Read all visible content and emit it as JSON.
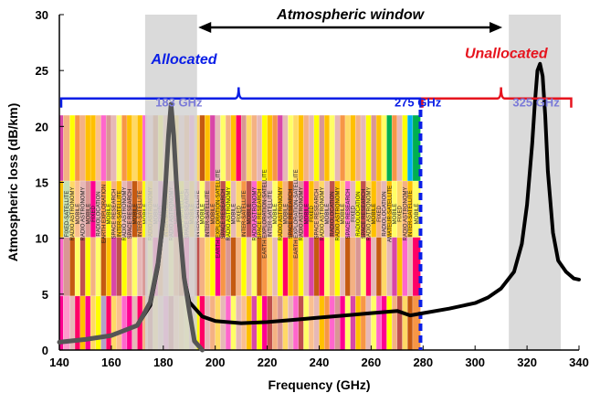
{
  "chart_data": {
    "type": "line",
    "xlabel": "Frequency (GHz)",
    "ylabel": "Atmospheric loss (dB/km)",
    "xlim": [
      140,
      340
    ],
    "ylim": [
      0,
      30
    ],
    "x_ticks": [
      "140",
      "160",
      "180",
      "200",
      "220",
      "240",
      "260",
      "280",
      "300",
      "320",
      "340"
    ],
    "y_ticks": [
      "0",
      "5",
      "10",
      "15",
      "20",
      "25",
      "30"
    ],
    "grid": false,
    "series": [
      {
        "color": "#000000",
        "x": [
          140,
          150,
          160,
          170,
          175,
          178,
          180,
          181,
          182,
          183,
          184,
          185,
          186,
          188,
          190,
          195,
          200,
          210,
          220,
          230,
          240,
          250,
          260,
          270,
          275,
          280,
          290,
          300,
          305,
          310,
          315,
          318,
          320,
          322,
          323,
          324,
          325,
          326,
          327,
          328,
          330,
          332,
          335,
          338,
          340
        ],
        "y": [
          0.7,
          0.95,
          1.3,
          2.2,
          4.0,
          7.5,
          11.5,
          15.0,
          19.0,
          22.0,
          19.0,
          15.0,
          11.5,
          6.5,
          4.3,
          3.0,
          2.6,
          2.4,
          2.5,
          2.7,
          2.9,
          3.1,
          3.3,
          3.5,
          3.1,
          3.3,
          3.7,
          4.2,
          4.7,
          5.5,
          7.0,
          9.5,
          13.0,
          18.5,
          22.0,
          25.0,
          25.6,
          24.5,
          21.0,
          16.0,
          10.5,
          8.0,
          7.0,
          6.4,
          6.3
        ]
      },
      {
        "color": "#555555",
        "x": [
          140,
          150,
          160,
          170,
          172,
          175,
          178,
          180,
          181,
          182,
          183,
          184,
          185,
          186,
          188,
          190,
          192,
          195
        ],
        "y": [
          0.7,
          0.95,
          1.3,
          2.2,
          3.0,
          4.3,
          7.8,
          11.8,
          15.2,
          19.2,
          22.0,
          19.2,
          15.2,
          11.8,
          6.5,
          3.5,
          0.8,
          0.0
        ]
      }
    ],
    "shaded_regions": [
      {
        "x_range": [
          173,
          193
        ],
        "color": "#d3d3d3"
      },
      {
        "x_range": [
          313,
          333
        ],
        "color": "#d3d3d3"
      }
    ],
    "annotations": {
      "window_label": "Atmospheric window",
      "allocated_label": "Allocated",
      "unallocated_label": "Unallocated",
      "freq_183": "183 GHz",
      "freq_275": "275 GHz",
      "freq_325": "325 GHz",
      "boundary_x": 279
    },
    "colors": {
      "allocated": "#0a1ee6",
      "unallocated": "#e6141e",
      "freq_label": "#7a7ad8",
      "curve": "#000000",
      "peak_curve": "#555555"
    },
    "allocation_bands": [
      {
        "x0": 140,
        "x1": 141.5,
        "label": "",
        "segments": [
          "#d946a8",
          "#ffc000",
          "#ff66cc",
          "#ff0090"
        ]
      },
      {
        "x0": 141.5,
        "x1": 144,
        "label": "FIXED-SATELLITE",
        "segments": [
          "#f4b183",
          "#c5e0b3",
          "#d99694",
          "#ff99cc"
        ]
      },
      {
        "x0": 144,
        "x1": 146,
        "label": "RADIO ASTRONOMY",
        "segments": [
          "#ffff00",
          "#ffd966",
          "#c55a11",
          "#e6b8b7"
        ]
      },
      {
        "x0": 146,
        "x1": 148,
        "label": "MOBILE",
        "segments": [
          "#f79646",
          "#fabf8f",
          "#ffff66",
          "#ff0066"
        ]
      },
      {
        "x0": 148,
        "x1": 150,
        "label": "RADIO ASTRONOMY",
        "segments": [
          "#f4b183",
          "#e6b8b7",
          "#c0504d",
          "#ffc000"
        ]
      },
      {
        "x0": 150,
        "x1": 152,
        "label": "MOBILE",
        "segments": [
          "#ffc000",
          "#d99694",
          "#ffff00",
          "#ff0090"
        ]
      },
      {
        "x0": 152,
        "x1": 154,
        "label": "FIXED",
        "segments": [
          "#ffc000",
          "#ff0090",
          "#f4b183",
          "#ffd966"
        ]
      },
      {
        "x0": 154,
        "x1": 156,
        "label": "RADIOLOCATION",
        "segments": [
          "#fabf8f",
          "#e6b8b7",
          "#ffff66",
          "#ffff00"
        ]
      },
      {
        "x0": 156,
        "x1": 158,
        "label": "EARTH EXPLORATION",
        "segments": [
          "#ff66cc",
          "#f79646",
          "#c55a11",
          "#b3a2c7"
        ]
      },
      {
        "x0": 158,
        "x1": 160,
        "label": "MOBILE",
        "segments": [
          "#d99694",
          "#ffff00",
          "#ffc000",
          "#ff0066"
        ]
      },
      {
        "x0": 160,
        "x1": 162,
        "label": "SPACE RESEARCH",
        "segments": [
          "#e6b8b7",
          "#f4b183",
          "#d946a8",
          "#ffd966"
        ]
      },
      {
        "x0": 162,
        "x1": 164,
        "label": "INTER-SATELLITE",
        "segments": [
          "#ffff66",
          "#ffc000",
          "#c0504d",
          "#fabf8f"
        ]
      },
      {
        "x0": 164,
        "x1": 166,
        "label": "RADIO ASTRONOMY",
        "segments": [
          "#f79646",
          "#e6b8b7",
          "#ffff00",
          "#ff66cc"
        ]
      },
      {
        "x0": 166,
        "x1": 168,
        "label": "SPACE RESEARCH",
        "segments": [
          "#ffc000",
          "#d99694",
          "#f4b183",
          "#ff0090"
        ]
      },
      {
        "x0": 168,
        "x1": 170,
        "label": "MOBILE",
        "segments": [
          "#ffd966",
          "#c55a11",
          "#ffff66",
          "#e6b8b7"
        ]
      },
      {
        "x0": 170,
        "x1": 172,
        "label": "INTER-SATELLITE",
        "segments": [
          "#ffc000",
          "#f79646",
          "#e6b8b7",
          "#ff0066"
        ]
      },
      {
        "x0": 172,
        "x1": 174,
        "label": "MOBILE",
        "segments": [
          "#ff66cc",
          "#ffff00",
          "#d99694",
          "#f4b183"
        ]
      },
      {
        "x0": 174,
        "x1": 176,
        "label": "RADIO ASTRONOMY",
        "segments": [
          "#e6b8b7",
          "#ffc000",
          "#ffff66",
          "#c0504d"
        ]
      },
      {
        "x0": 176,
        "x1": 178,
        "label": "MOBILE",
        "segments": [
          "#c55a11",
          "#f4b183",
          "#ff0090",
          "#ffd966"
        ]
      },
      {
        "x0": 178,
        "x1": 180,
        "label": "FIXED",
        "segments": [
          "#ffff00",
          "#d946a8",
          "#f79646",
          "#e6b8b7"
        ]
      },
      {
        "x0": 180,
        "x1": 182,
        "label": "INTER-SATELLITE",
        "segments": [
          "#f4b183",
          "#ffc000",
          "#e6b8b7",
          "#ff66cc"
        ]
      },
      {
        "x0": 182,
        "x1": 184,
        "label": "RADIO ASTRONOMY",
        "segments": [
          "#ffd966",
          "#d99694",
          "#ffff66",
          "#c0504d"
        ]
      },
      {
        "x0": 184,
        "x1": 186,
        "label": "MOBILE",
        "segments": [
          "#ffc000",
          "#ff0066",
          "#f79646",
          "#fabf8f"
        ]
      },
      {
        "x0": 186,
        "x1": 188,
        "label": "INTER-SATELLITE",
        "segments": [
          "#e6b8b7",
          "#ffff00",
          "#c55a11",
          "#ffd966"
        ]
      },
      {
        "x0": 188,
        "x1": 190,
        "label": "SPACE RESEARCH",
        "segments": [
          "#f79646",
          "#f4b183",
          "#ff0090",
          "#ffff66"
        ]
      },
      {
        "x0": 190,
        "x1": 192,
        "label": "MOBILE",
        "segments": [
          "#ff66cc",
          "#ffc000",
          "#e6b8b7",
          "#d99694"
        ]
      },
      {
        "x0": 192,
        "x1": 194,
        "label": "INTER-SATELLITE",
        "segments": [
          "#ffd966",
          "#e6b8b7",
          "#c0504d",
          "#ffff00"
        ]
      },
      {
        "x0": 194,
        "x1": 196,
        "label": "MOBILE",
        "segments": [
          "#c55a11",
          "#ffff66",
          "#f4b183",
          "#ff0066"
        ]
      },
      {
        "x0": 196,
        "x1": 198,
        "label": "INTER-SATELLITE",
        "segments": [
          "#ffc000",
          "#d99694",
          "#ffd966",
          "#e6b8b7"
        ]
      },
      {
        "x0": 198,
        "x1": 200,
        "label": "MOBILE",
        "segments": [
          "#d946a8",
          "#f79646",
          "#ffff00",
          "#f4b183"
        ]
      },
      {
        "x0": 200,
        "x1": 202,
        "label": "EARTH EXPLORATION-SATELLITE",
        "segments": [
          "#e6b8b7",
          "#ffc000",
          "#ff0090",
          "#ffd966"
        ]
      },
      {
        "x0": 202,
        "x1": 204,
        "label": "SPACE RESEARCH",
        "segments": [
          "#ffff66",
          "#c0504d",
          "#f79646",
          "#e6b8b7"
        ]
      },
      {
        "x0": 204,
        "x1": 206,
        "label": "RADIO ASTRONOMY",
        "segments": [
          "#f4b183",
          "#ffff00",
          "#d99694",
          "#ff66cc"
        ]
      },
      {
        "x0": 206,
        "x1": 208,
        "label": "MOBILE",
        "segments": [
          "#ffc000",
          "#e6b8b7",
          "#c55a11",
          "#ffff66"
        ]
      },
      {
        "x0": 208,
        "x1": 210,
        "label": "FIXED",
        "segments": [
          "#ff0066",
          "#ffd966",
          "#f4b183",
          "#e6b8b7"
        ]
      },
      {
        "x0": 210,
        "x1": 212,
        "label": "INTER-SATELLITE",
        "segments": [
          "#d99694",
          "#f79646",
          "#ffff00",
          "#fabf8f"
        ]
      },
      {
        "x0": 212,
        "x1": 214,
        "label": "MOBILE",
        "segments": [
          "#ffd966",
          "#c0504d",
          "#e6b8b7",
          "#ffc000"
        ]
      },
      {
        "x0": 214,
        "x1": 216,
        "label": "RADIO ASTRONOMY",
        "segments": [
          "#f4b183",
          "#ff66cc",
          "#ffff66",
          "#d946a8"
        ]
      },
      {
        "x0": 216,
        "x1": 218,
        "label": "SPACE RESEARCH",
        "segments": [
          "#e6b8b7",
          "#ffc000",
          "#c55a11",
          "#ffff00"
        ]
      },
      {
        "x0": 218,
        "x1": 220,
        "label": "EARTH EXPLORATION-SATELLITE",
        "segments": [
          "#ffff00",
          "#d99694",
          "#f79646",
          "#ff0090"
        ]
      },
      {
        "x0": 220,
        "x1": 222,
        "label": "INTER-SATELLITE",
        "segments": [
          "#ffc000",
          "#e6b8b7",
          "#ffd966",
          "#c0504d"
        ]
      },
      {
        "x0": 222,
        "x1": 224,
        "label": "MOBILE",
        "segments": [
          "#f79646",
          "#ffff66",
          "#e6b8b7",
          "#f4b183"
        ]
      },
      {
        "x0": 224,
        "x1": 226,
        "label": "RADIO ASTRONOMY",
        "segments": [
          "#d946a8",
          "#ffc000",
          "#ffff00",
          "#d99694"
        ]
      },
      {
        "x0": 226,
        "x1": 228,
        "label": "MOBILE",
        "segments": [
          "#e6b8b7",
          "#f4b183",
          "#ff0066",
          "#ffd966"
        ]
      },
      {
        "x0": 228,
        "x1": 230,
        "label": "SPACE RESEARCH",
        "segments": [
          "#ffff66",
          "#c55a11",
          "#ffc000",
          "#e6b8b7"
        ]
      },
      {
        "x0": 230,
        "x1": 232,
        "label": "EARTH EXPLORATION-SATELLITE",
        "segments": [
          "#ffd966",
          "#e6b8b7",
          "#f79646",
          "#ff66cc"
        ]
      },
      {
        "x0": 232,
        "x1": 234,
        "label": "RADIO ASTRONOMY",
        "segments": [
          "#ffc000",
          "#d99694",
          "#ffff00",
          "#c0504d"
        ]
      },
      {
        "x0": 234,
        "x1": 236,
        "label": "MOBILE",
        "segments": [
          "#f4b183",
          "#ff0090",
          "#e6b8b7",
          "#ffff66"
        ]
      },
      {
        "x0": 236,
        "x1": 238,
        "label": "FIXED",
        "segments": [
          "#e6b8b7",
          "#ffc000",
          "#d946a8",
          "#fabf8f"
        ]
      },
      {
        "x0": 238,
        "x1": 240,
        "label": "SPACE RESEARCH",
        "segments": [
          "#ffff00",
          "#f4b183",
          "#c55a11",
          "#e6b8b7"
        ]
      },
      {
        "x0": 240,
        "x1": 242,
        "label": "RADIO ASTRONOMY",
        "segments": [
          "#d99694",
          "#ffd966",
          "#ff0066",
          "#ffc000"
        ]
      },
      {
        "x0": 242,
        "x1": 244,
        "label": "MOBILE",
        "segments": [
          "#ffc000",
          "#e6b8b7",
          "#ffff66",
          "#f79646"
        ]
      },
      {
        "x0": 244,
        "x1": 246,
        "label": "RADIOLOCATION",
        "segments": [
          "#ffff66",
          "#c0504d",
          "#f4b183",
          "#ff66cc"
        ]
      },
      {
        "x0": 246,
        "x1": 248,
        "label": "RADIO ASTRONOMY",
        "segments": [
          "#e6b8b7",
          "#ffc000",
          "#ffff00",
          "#d99694"
        ]
      },
      {
        "x0": 248,
        "x1": 250,
        "label": "MOBILE",
        "segments": [
          "#f79646",
          "#ffd966",
          "#e6b8b7",
          "#ff0090"
        ]
      },
      {
        "x0": 250,
        "x1": 252,
        "label": "SPACE RESEARCH",
        "segments": [
          "#ffd966",
          "#ff66cc",
          "#c55a11",
          "#ffff66"
        ]
      },
      {
        "x0": 252,
        "x1": 254,
        "label": "FIXED",
        "segments": [
          "#ffc000",
          "#e6b8b7",
          "#f4b183",
          "#d946a8"
        ]
      },
      {
        "x0": 254,
        "x1": 256,
        "label": "RADIOLOCATION",
        "segments": [
          "#f4b183",
          "#ffff00",
          "#d99694",
          "#ffc000"
        ]
      },
      {
        "x0": 256,
        "x1": 258,
        "label": "SPACE RESEARCH",
        "segments": [
          "#e6b8b7",
          "#c0504d",
          "#ffff66",
          "#f79646"
        ]
      },
      {
        "x0": 258,
        "x1": 260,
        "label": "RADIO ASTRONOMY",
        "segments": [
          "#ffff00",
          "#ffd966",
          "#ff0066",
          "#e6b8b7"
        ]
      },
      {
        "x0": 260,
        "x1": 262,
        "label": "MOBILE",
        "segments": [
          "#d99694",
          "#ffc000",
          "#e6b8b7",
          "#ffff66"
        ]
      },
      {
        "x0": 262,
        "x1": 264,
        "label": "FIXED",
        "segments": [
          "#ffc000",
          "#f4b183",
          "#c55a11",
          "#ff66cc"
        ]
      },
      {
        "x0": 264,
        "x1": 266,
        "label": "RADIOLOCATION",
        "segments": [
          "#ffff66",
          "#e6b8b7",
          "#ffd966",
          "#ff0090"
        ]
      },
      {
        "x0": 266,
        "x1": 268,
        "label": "AMATEUR-SATELLITE",
        "segments": [
          "#00b050",
          "#ffc000",
          "#e6b8b7",
          "#ffff00"
        ]
      },
      {
        "x0": 268,
        "x1": 270,
        "label": "MOBILE",
        "segments": [
          "#f79646",
          "#ffff66",
          "#d946a8",
          "#f4b183"
        ]
      },
      {
        "x0": 270,
        "x1": 272,
        "label": "FIXED",
        "segments": [
          "#e6b8b7",
          "#ffd966",
          "#ffc000",
          "#c0504d"
        ]
      },
      {
        "x0": 272,
        "x1": 274,
        "label": "RADIO ASTRONOMY",
        "segments": [
          "#ffff00",
          "#f4b183",
          "#ff66cc",
          "#ffd966"
        ]
      },
      {
        "x0": 274,
        "x1": 276,
        "label": "INTER-SATELLITE",
        "segments": [
          "#00b0f0",
          "#ffc000",
          "#e6b8b7",
          "#c55a11"
        ]
      },
      {
        "x0": 276,
        "x1": 279,
        "label": "MOBILE",
        "segments": [
          "#00b050",
          "#ffff66",
          "#ff0066",
          "#f79646"
        ]
      }
    ]
  }
}
